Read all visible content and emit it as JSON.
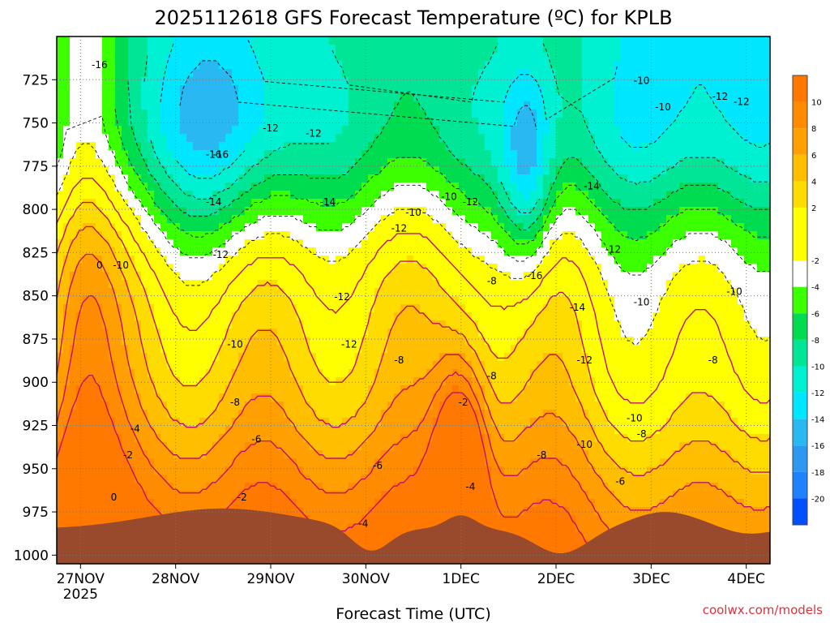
{
  "title": "2025112618 GFS Forecast Temperature (ºC) for KPLB",
  "credit": "coolwx.com/models",
  "chart_data": {
    "type": "heatmap",
    "title": "2025112618 GFS Forecast Temperature (ºC) for KPLB",
    "xlabel": "Forecast Time (UTC)",
    "ylabel": "",
    "x_ticks": [
      "27NOV",
      "28NOV",
      "29NOV",
      "30NOV",
      "1DEC",
      "2DEC",
      "3DEC",
      "4DEC"
    ],
    "x_year_label": "2025",
    "x_range_days": [
      -0.25,
      7.25
    ],
    "y_ticks": [
      725,
      750,
      775,
      800,
      825,
      850,
      875,
      900,
      925,
      950,
      975,
      1000
    ],
    "y_range_hpa": [
      700,
      1005
    ],
    "grid": true,
    "colorbar": {
      "tick_labels": [
        10,
        8,
        6,
        4,
        2,
        -2,
        -4,
        -6,
        -8,
        -10,
        -12,
        -14,
        -16,
        -18,
        -20
      ],
      "range": [
        -22,
        12
      ]
    },
    "contour_labels": [
      "-16",
      "-12",
      "-10",
      "-12",
      "-16",
      "-12",
      "-10",
      "-12",
      "-16",
      "-14",
      "-14",
      "-10",
      "-12",
      "-10",
      "-12",
      "-14",
      "0",
      "-10",
      "-12",
      "-8",
      "-16",
      "-12",
      "-12",
      "-10",
      "-14",
      "-10",
      "-12",
      "-10",
      "-8",
      "-12",
      "-8",
      "-8",
      "-8",
      "-10",
      "-4",
      "-6",
      "-2",
      "-8",
      "-10",
      "-8",
      "-2",
      "-6",
      "-6",
      "0",
      "-2",
      "-4",
      "-4"
    ],
    "terrain_color": "#9a4a2c",
    "contour_color": "#111111",
    "positive_contour_color": "#c0106a"
  }
}
